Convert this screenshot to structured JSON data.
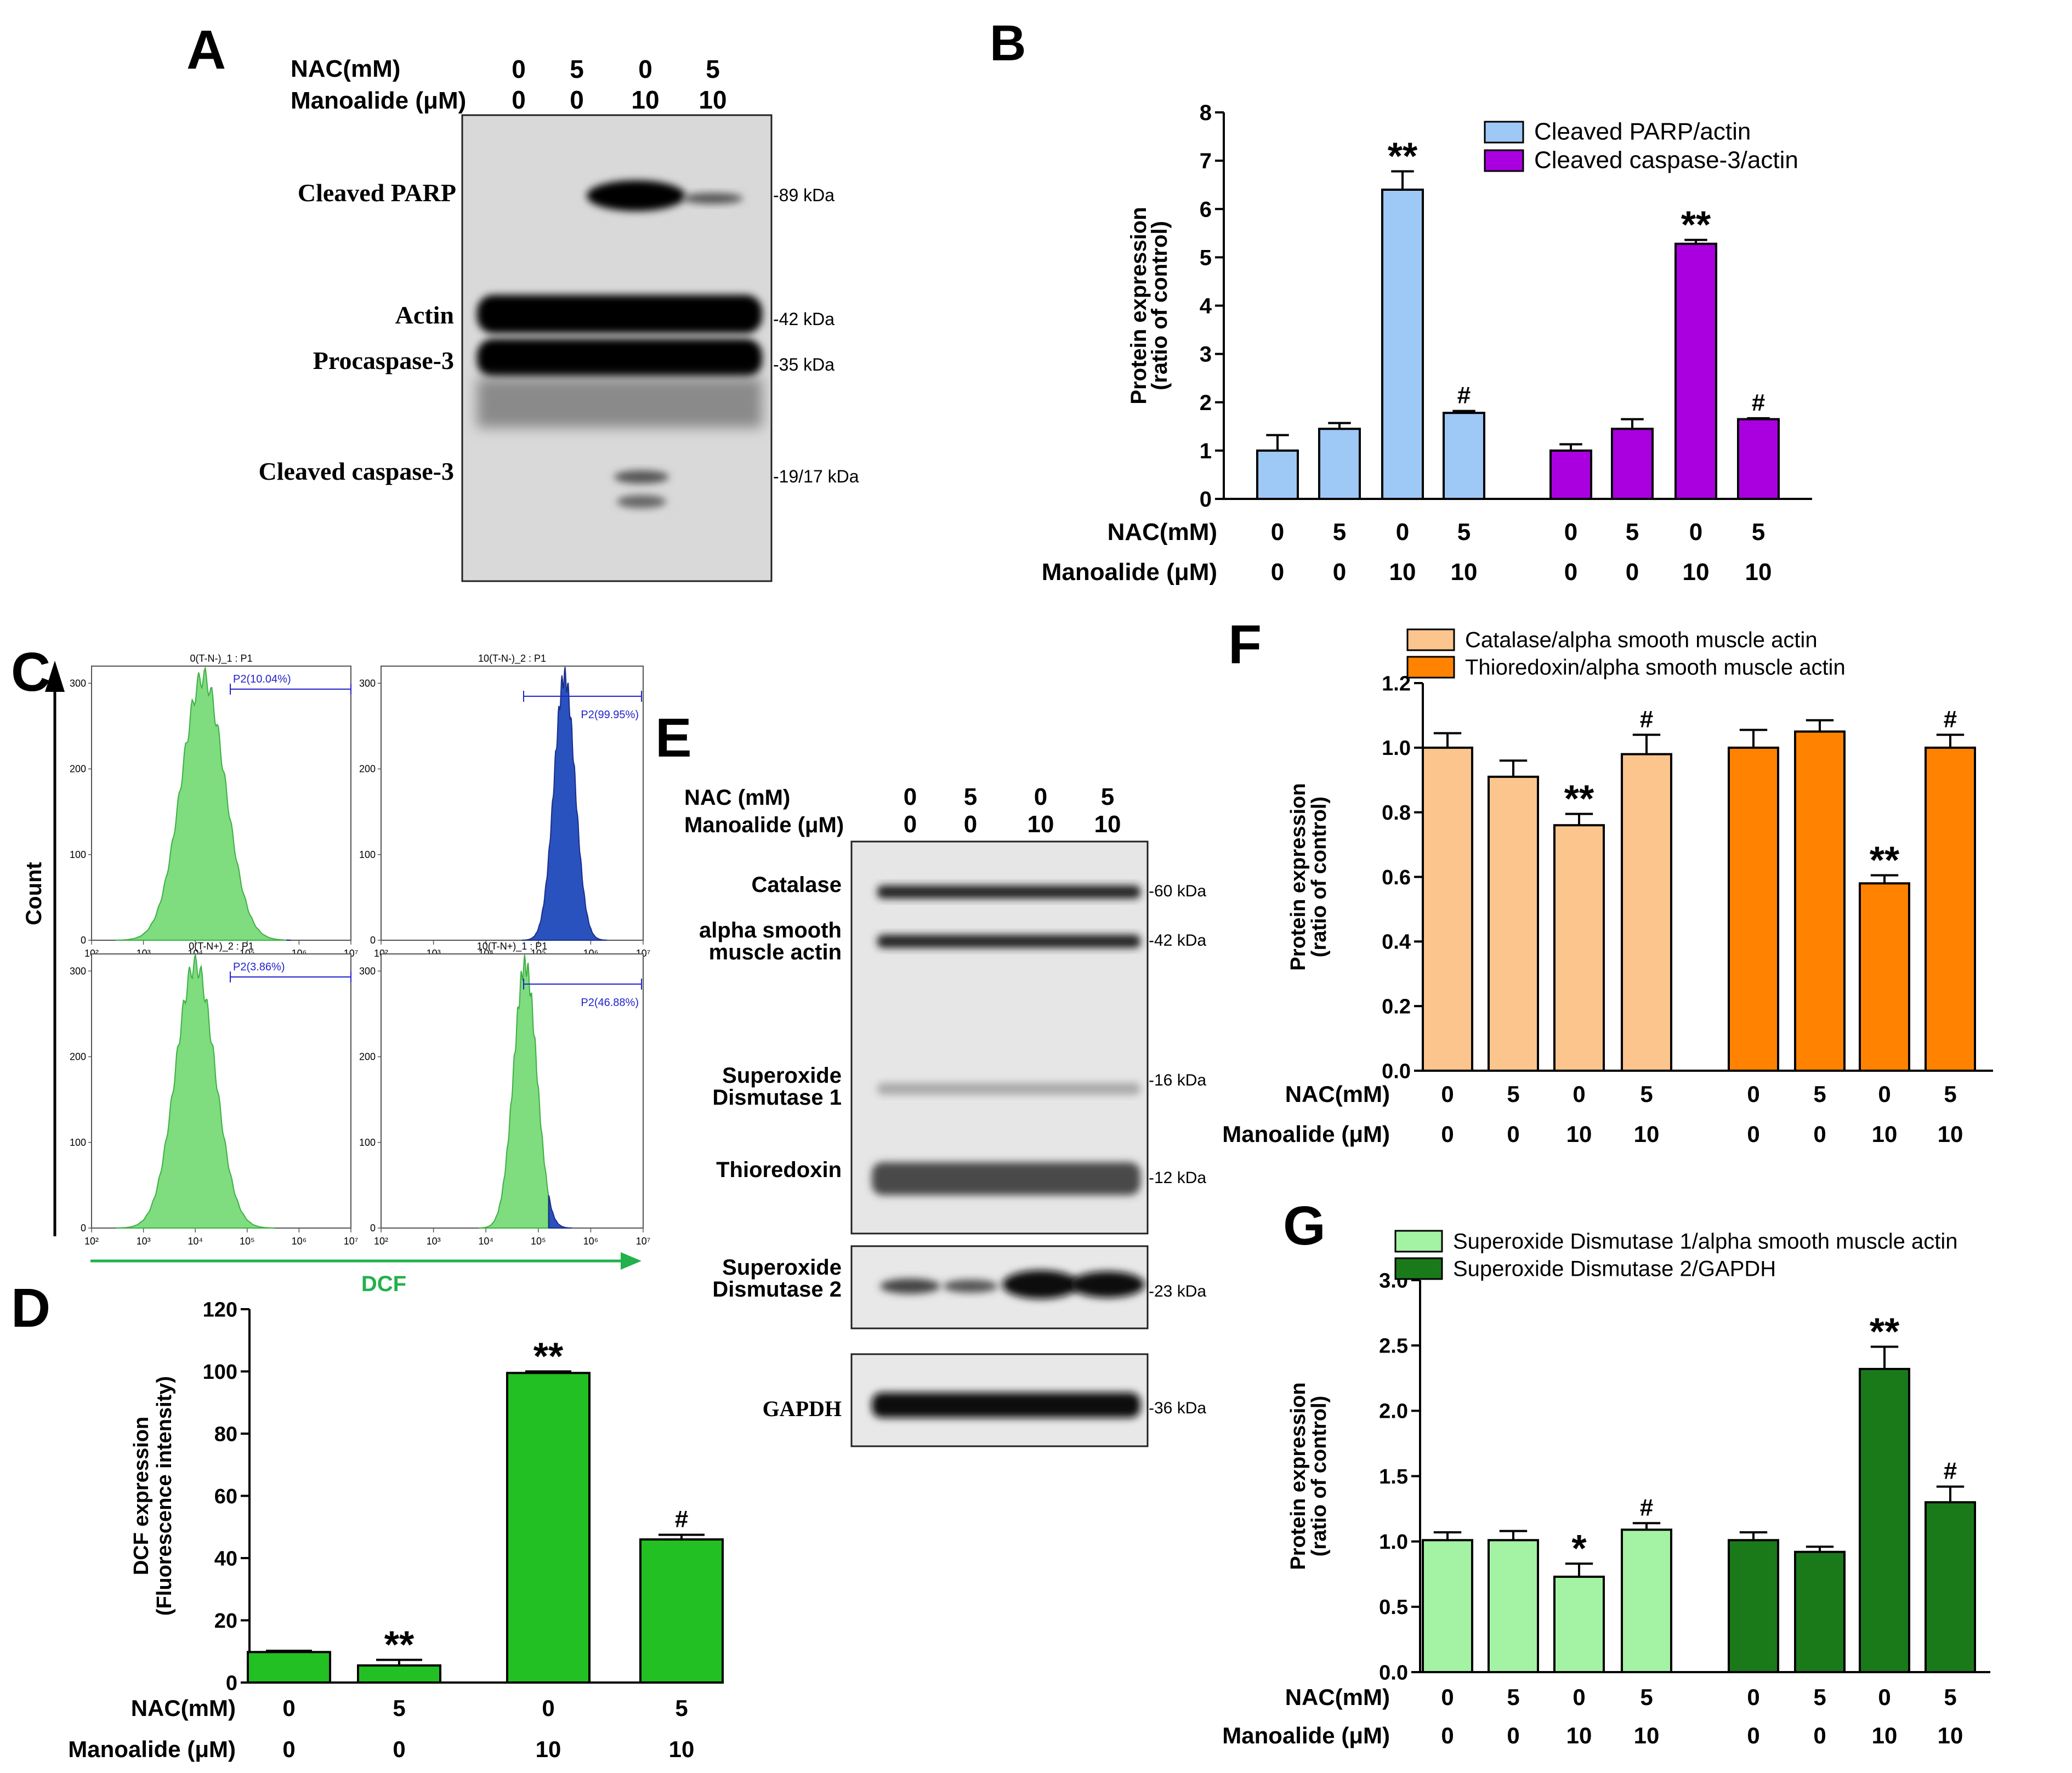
{
  "figure": {
    "panel_labels": [
      "A",
      "B",
      "C",
      "D",
      "E",
      "F",
      "G"
    ],
    "treatments": {
      "nac_label": "NAC(mM)",
      "nac_label_spaced": "NAC (mM)",
      "manoalide_label": "Manoalide (μM)",
      "nac": [
        "0",
        "5",
        "0",
        "5"
      ],
      "manoalide": [
        "0",
        "0",
        "10",
        "10"
      ]
    }
  },
  "panel_a": {
    "bands": [
      "Cleaved PARP",
      "Actin",
      "Procaspase-3",
      "Cleaved caspase-3"
    ],
    "markers": [
      "-89 kDa",
      "-42 kDa",
      "-35 kDa",
      "-19/17 kDa"
    ]
  },
  "panel_c": {
    "y_label": "Count",
    "x_label": "DCF",
    "y_ticks": [
      "0",
      "100",
      "200",
      "300"
    ],
    "x_ticks": [
      "10²",
      "10³",
      "10⁴",
      "10⁵",
      "10⁶",
      "10⁷"
    ],
    "histograms": [
      {
        "title": "0(T-N-)_1 : P1",
        "gate": "P2(10.04%)"
      },
      {
        "title": "10(T-N-)_2 : P1",
        "gate": "P2(99.95%)"
      },
      {
        "title": "0(T-N+)_2 : P1",
        "gate": "P2(3.86%)"
      },
      {
        "title": "10(T-N+)_1 : P1",
        "gate": "P2(46.88%)"
      }
    ],
    "colors": {
      "green": "#7fdc7f",
      "blue": "#2a52be"
    }
  },
  "panel_e": {
    "bands": [
      "Catalase",
      "alpha smooth muscle actin",
      "Superoxide Dismutase 1",
      "Thioredoxin",
      "Superoxide Dismutase 2",
      "GAPDH"
    ],
    "markers": [
      "-60 kDa",
      "-42 kDa",
      "-16 kDa",
      "-12 kDa",
      "-23 kDa",
      "-36 kDa"
    ]
  },
  "chart_data": [
    {
      "panel": "B",
      "type": "bar",
      "ylabel": "Protein expression (ratio of control)",
      "ylim": [
        0,
        8
      ],
      "yticks": [
        "0",
        "1",
        "2",
        "3",
        "4",
        "5",
        "6",
        "7",
        "8"
      ],
      "categories": [
        "0/0",
        "5/0",
        "0/10",
        "5/10"
      ],
      "legend_position": "top-right",
      "series": [
        {
          "name": "Cleaved PARP/actin",
          "color": "#9ec8f5",
          "values": [
            1.0,
            1.45,
            6.4,
            1.78
          ],
          "errors": [
            0.32,
            0.12,
            0.38,
            0.04
          ],
          "marks": [
            "",
            "",
            "**",
            "#"
          ]
        },
        {
          "name": "Cleaved caspase-3/actin",
          "color": "#aa00e0",
          "values": [
            1.0,
            1.45,
            5.28,
            1.65
          ],
          "errors": [
            0.13,
            0.2,
            0.08,
            0.02
          ],
          "marks": [
            "",
            "",
            "**",
            "#"
          ]
        }
      ]
    },
    {
      "panel": "D",
      "type": "bar",
      "ylabel": "DCF expression (Fluorescence intensity)",
      "ylim": [
        0,
        120
      ],
      "yticks": [
        "0",
        "20",
        "40",
        "60",
        "80",
        "100",
        "120"
      ],
      "categories": [
        "0/0",
        "5/0",
        "0/10",
        "5/10"
      ],
      "series": [
        {
          "name": "DCF",
          "color": "#22c022",
          "values": [
            9.8,
            5.5,
            99.5,
            46
          ],
          "errors": [
            0.4,
            1.8,
            0.5,
            1.5
          ],
          "marks": [
            "",
            "**",
            "**",
            "#"
          ]
        }
      ]
    },
    {
      "panel": "F",
      "type": "bar",
      "ylabel": "Protein expression (ratio of control)",
      "ylim": [
        0,
        1.2
      ],
      "yticks": [
        "0.0",
        "0.2",
        "0.4",
        "0.6",
        "0.8",
        "1.0",
        "1.2"
      ],
      "categories": [
        "0/0",
        "5/0",
        "0/10",
        "5/10"
      ],
      "legend_position": "top-left",
      "series": [
        {
          "name": "Catalase/alpha smooth muscle actin",
          "color": "#fbc58d",
          "values": [
            1.0,
            0.91,
            0.76,
            0.98
          ],
          "errors": [
            0.045,
            0.05,
            0.035,
            0.06
          ],
          "marks": [
            "",
            "",
            "**",
            "#"
          ]
        },
        {
          "name": "Thioredoxin/alpha smooth muscle actin",
          "color": "#ff8300",
          "values": [
            1.0,
            1.05,
            0.58,
            1.0
          ],
          "errors": [
            0.055,
            0.035,
            0.025,
            0.04
          ],
          "marks": [
            "",
            "",
            "**",
            "#"
          ]
        }
      ]
    },
    {
      "panel": "G",
      "type": "bar",
      "ylabel": "Protein expression (ratio of control)",
      "ylim": [
        0,
        3.0
      ],
      "yticks": [
        "0.0",
        "0.5",
        "1.0",
        "1.5",
        "2.0",
        "2.5",
        "3.0"
      ],
      "categories": [
        "0/0",
        "5/0",
        "0/10",
        "5/10"
      ],
      "legend_position": "top-left",
      "series": [
        {
          "name": "Superoxide Dismutase 1/alpha smooth muscle actin",
          "color": "#a4f2a4",
          "values": [
            1.01,
            1.01,
            0.73,
            1.09
          ],
          "errors": [
            0.06,
            0.07,
            0.1,
            0.05
          ],
          "marks": [
            "",
            "",
            "*",
            "#"
          ]
        },
        {
          "name": "Superoxide Dismutase 2/GAPDH",
          "color": "#1a7a1a",
          "values": [
            1.01,
            0.92,
            2.32,
            1.3
          ],
          "errors": [
            0.06,
            0.04,
            0.17,
            0.12
          ],
          "marks": [
            "",
            "",
            "**",
            "#"
          ]
        }
      ]
    }
  ]
}
